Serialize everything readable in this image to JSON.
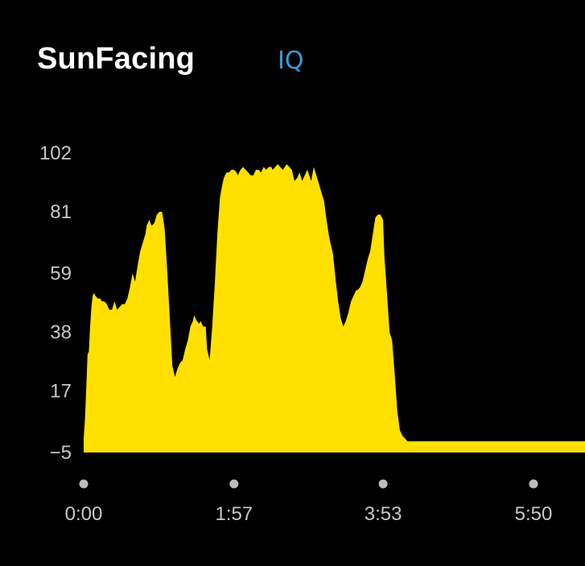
{
  "header": {
    "title": "SunFacing",
    "badge": "IQ"
  },
  "colors": {
    "background": "#000000",
    "area_fill": "#FFE000",
    "title": "#ffffff",
    "badge": "#3d9ad6",
    "tick_text": "#c8c8c8",
    "tick_dot": "#bdbdbd"
  },
  "chart_data": {
    "type": "area",
    "title": "",
    "xlabel": "",
    "ylabel": "",
    "y_ticks": [
      "102",
      "81",
      "59",
      "38",
      "17",
      "−5"
    ],
    "y_tick_values": [
      102,
      81,
      59,
      38,
      17,
      -5
    ],
    "x_ticks": [
      "0:00",
      "1:57",
      "3:53",
      "5:50"
    ],
    "x_tick_minutes": [
      0,
      117,
      233,
      350
    ],
    "xlim_minutes": [
      0,
      400
    ],
    "ylim": [
      -5,
      102
    ],
    "grid": false,
    "legend": "none",
    "series": [
      {
        "x_minutes": [
          0,
          1,
          2,
          3,
          4,
          5,
          6,
          7,
          8,
          9,
          11,
          13,
          14,
          16,
          18,
          20,
          22,
          24,
          26,
          28,
          30,
          32,
          34,
          36,
          38,
          40,
          42,
          44,
          46,
          48,
          49,
          51,
          53,
          55,
          57,
          59,
          61,
          63,
          65,
          67,
          69,
          71,
          73,
          75,
          77,
          79,
          81,
          83,
          85,
          86,
          88,
          90,
          91,
          93,
          95,
          96,
          98,
          100,
          102,
          104,
          106,
          108,
          109,
          111,
          113,
          115,
          117,
          119,
          120,
          122,
          124,
          126,
          128,
          130,
          132,
          134,
          136,
          138,
          140,
          142,
          144,
          146,
          147,
          149,
          151,
          153,
          155,
          158,
          160,
          162,
          164,
          166,
          168,
          170,
          172,
          174,
          177,
          179,
          181,
          183,
          185,
          187,
          189,
          191,
          194,
          196,
          198,
          200,
          202,
          204,
          206,
          208,
          210,
          212,
          213,
          215,
          217,
          219,
          221,
          223,
          225,
          227,
          229,
          231,
          233,
          234,
          236,
          238,
          240,
          242,
          244,
          246,
          248,
          250,
          252,
          254,
          256,
          258,
          260,
          262,
          264,
          266,
          268,
          270,
          272,
          274,
          276,
          278,
          279,
          281,
          283,
          285,
          287,
          289,
          291,
          293,
          295,
          297,
          299,
          301,
          303,
          305,
          307,
          309,
          311,
          313,
          350,
          400
        ],
        "values": [
          0,
          7,
          18,
          30,
          31,
          40,
          47,
          51,
          52,
          51,
          50,
          50,
          49,
          49,
          48,
          46,
          46,
          49,
          46,
          47,
          48,
          48,
          50,
          54,
          59,
          56,
          62,
          67,
          70,
          73,
          76,
          78,
          76,
          77,
          80,
          81,
          81,
          75,
          60,
          43,
          26,
          22,
          25,
          27,
          28,
          32,
          35,
          40,
          42,
          44,
          42,
          41,
          42,
          40,
          40,
          32,
          28,
          40,
          55,
          73,
          86,
          91,
          93,
          95,
          95,
          96,
          96,
          95,
          94,
          96,
          97,
          96,
          95,
          94,
          94,
          96,
          96,
          95,
          97,
          96,
          97,
          97,
          96,
          97,
          98,
          97,
          96,
          98,
          97,
          96,
          92,
          93,
          95,
          92,
          94,
          96,
          92,
          97,
          94,
          91,
          88,
          85,
          78,
          72,
          66,
          57,
          49,
          43,
          40,
          42,
          45,
          49,
          51,
          53,
          53,
          54,
          56,
          60,
          64,
          67,
          73,
          79,
          80,
          80,
          78,
          65,
          52,
          38,
          35,
          23,
          10,
          3,
          1,
          0,
          -1,
          -1,
          -1,
          -1,
          -1,
          -1,
          -1,
          -1,
          -1,
          -1,
          -1,
          -1,
          -1,
          -1,
          -1,
          -1,
          -1,
          -1,
          -1,
          -1,
          -1,
          -1,
          -1,
          -1,
          -1,
          -1,
          -1,
          -1,
          -1,
          -1,
          -1,
          -1,
          -1,
          -1
        ]
      }
    ]
  }
}
